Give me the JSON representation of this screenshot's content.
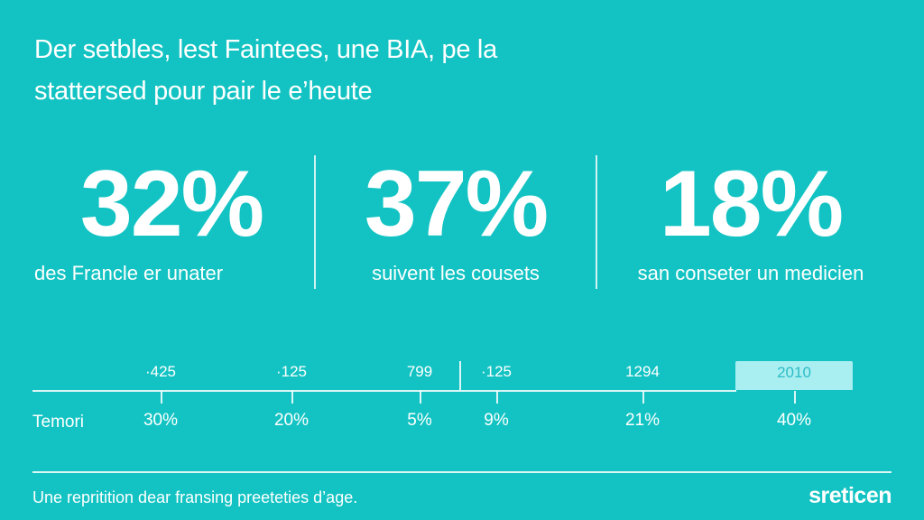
{
  "title": {
    "line1": "Der setbles, lest Faintees, une BIA, pe la",
    "line2": "stattersed pour pair le e’heute"
  },
  "stats": [
    {
      "value": "32%",
      "caption": "des Francle er unater"
    },
    {
      "value": "37%",
      "caption": "suivent les cousets"
    },
    {
      "value": "18%",
      "caption": "san conseter un medicien"
    }
  ],
  "timeline": {
    "row_label": "Temori",
    "points": [
      {
        "top": "·425",
        "pct": "30%"
      },
      {
        "top": "·125",
        "pct": "20%"
      },
      {
        "top": "799",
        "pct": "5%"
      },
      {
        "top": "·125",
        "pct": "9%"
      },
      {
        "top": "1294",
        "pct": "21%"
      },
      {
        "top": "2010",
        "pct": "40%",
        "highlighted": true
      }
    ]
  },
  "footer": {
    "note": "Une repritition dear fransing preeteties d’age.",
    "logo": "sreticen"
  },
  "colors": {
    "background": "#13c3c3",
    "highlight": "#a9eff2",
    "text": "#ffffff"
  }
}
